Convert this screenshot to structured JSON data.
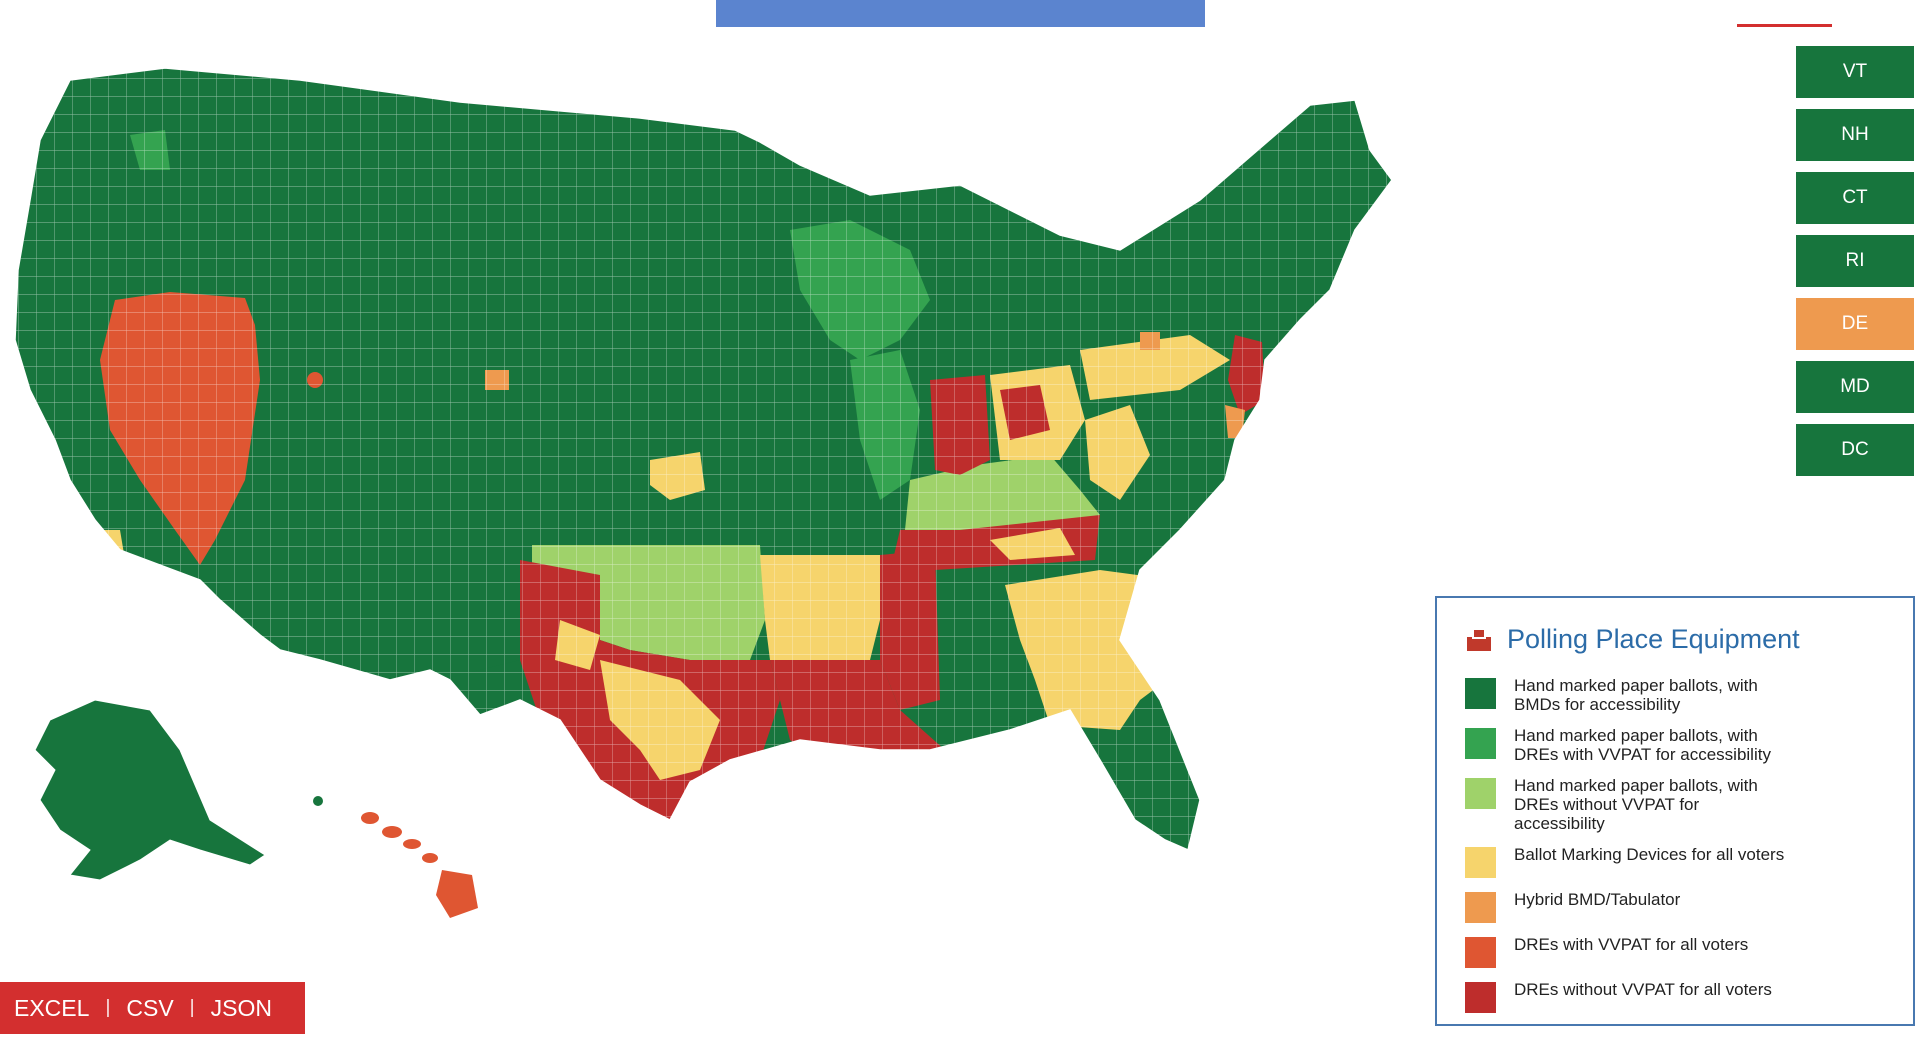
{
  "colors": {
    "bmd_accessibility": "#17753d",
    "dre_vvpat_accessibility": "#34a350",
    "dre_no_vvpat_accessibility": "#9fd26a",
    "bmd_all": "#f6d46c",
    "hybrid": "#ee9a4f",
    "dre_vvpat_all": "#df5632",
    "dre_no_vvpat_all": "#be2d2c",
    "top_bar": "#5b84cf",
    "export_bar": "#d32f2f"
  },
  "small_states": [
    {
      "label": "VT",
      "category": "bmd_accessibility"
    },
    {
      "label": "NH",
      "category": "bmd_accessibility"
    },
    {
      "label": "CT",
      "category": "bmd_accessibility"
    },
    {
      "label": "RI",
      "category": "bmd_accessibility"
    },
    {
      "label": "DE",
      "category": "hybrid"
    },
    {
      "label": "MD",
      "category": "bmd_accessibility"
    },
    {
      "label": "DC",
      "category": "bmd_accessibility"
    }
  ],
  "legend": {
    "icon": "ballot-box-icon",
    "title": "Polling Place Equipment",
    "items": [
      {
        "category": "bmd_accessibility",
        "lines": [
          "Hand marked paper ballots, with",
          "BMDs for accessibility"
        ]
      },
      {
        "category": "dre_vvpat_accessibility",
        "lines": [
          "Hand marked paper ballots, with",
          "DREs with VVPAT for accessibility"
        ]
      },
      {
        "category": "dre_no_vvpat_accessibility",
        "lines": [
          "Hand marked paper ballots, with",
          "DREs without VVPAT for",
          "accessibility"
        ]
      },
      {
        "category": "bmd_all",
        "lines": [
          "Ballot Marking Devices for all voters"
        ]
      },
      {
        "category": "hybrid",
        "lines": [
          "Hybrid BMD/Tabulator"
        ]
      },
      {
        "category": "dre_vvpat_all",
        "lines": [
          "DREs with VVPAT for all voters"
        ]
      },
      {
        "category": "dre_no_vvpat_all",
        "lines": [
          "DREs without VVPAT for all voters"
        ]
      }
    ]
  },
  "export": {
    "excel": "EXCEL",
    "csv": "CSV",
    "json": "JSON",
    "separator": "|"
  }
}
